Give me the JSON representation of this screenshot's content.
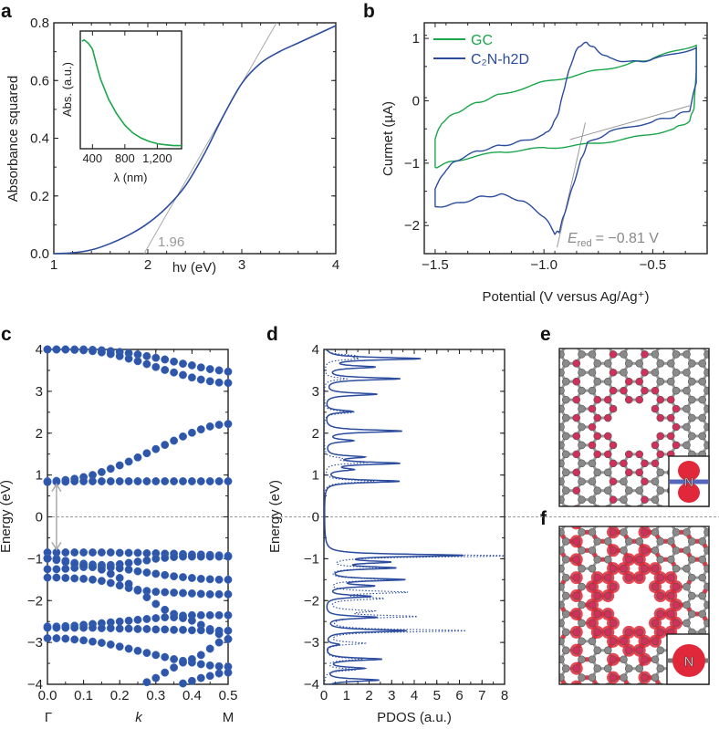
{
  "colors": {
    "blue": "#2b4c9e",
    "green": "#1aa64a",
    "gray": "#999999",
    "red": "#e0283a",
    "atom": "#8a8a8a",
    "nitrogen": "#d0305a"
  },
  "panels": {
    "a": "a",
    "b": "b",
    "c": "c",
    "d": "d",
    "e": "e",
    "f": "f"
  },
  "structure": {
    "atom_label": "N"
  },
  "chart_data": [
    {
      "id": "a",
      "type": "line",
      "xlabel": "hν (eV)",
      "ylabel": "Absorbance squared",
      "xlim": [
        1,
        4
      ],
      "ylim": [
        0,
        0.8
      ],
      "xticks": [
        "1",
        "2",
        "3",
        "4"
      ],
      "xtick_values": [
        1,
        2,
        3,
        4
      ],
      "yticks": [
        "0.0",
        "0.2",
        "0.4",
        "0.6",
        "0.8"
      ],
      "ytick_values": [
        0,
        0.2,
        0.4,
        0.6,
        0.8
      ],
      "series": [
        {
          "name": "absorbance squared",
          "x": [
            1,
            1.2,
            1.4,
            1.6,
            1.8,
            2.0,
            2.2,
            2.4,
            2.6,
            2.8,
            3.0,
            3.2,
            3.4,
            3.6,
            3.8,
            4.0
          ],
          "y": [
            0,
            0.003,
            0.013,
            0.035,
            0.065,
            0.105,
            0.16,
            0.235,
            0.345,
            0.475,
            0.59,
            0.66,
            0.7,
            0.73,
            0.76,
            0.79
          ]
        }
      ],
      "tangent": {
        "x": [
          1.96,
          3.37
        ],
        "y": [
          0,
          0.8
        ]
      },
      "annotation": "1.96",
      "inset": {
        "type": "line",
        "xlabel": "λ (nm)",
        "ylabel": "Abs. (a.u.)",
        "xlim": [
          250,
          1500
        ],
        "ylim": [
          0,
          1.05
        ],
        "xticks": [
          "400",
          "800",
          "1,200"
        ],
        "xtick_values": [
          400,
          800,
          1200
        ],
        "x": [
          270,
          300,
          350,
          400,
          450,
          500,
          600,
          700,
          800,
          900,
          1000,
          1100,
          1200,
          1300,
          1400,
          1500
        ],
        "y": [
          0.96,
          0.97,
          0.94,
          0.89,
          0.75,
          0.62,
          0.44,
          0.31,
          0.21,
          0.14,
          0.095,
          0.065,
          0.045,
          0.035,
          0.028,
          0.028
        ]
      }
    },
    {
      "id": "b",
      "type": "line",
      "xlabel": "Potential (V versus Ag/Ag⁺)",
      "ylabel": "Curmet (µA)",
      "xlim": [
        -1.55,
        -0.25
      ],
      "ylim": [
        -2.45,
        1.25
      ],
      "xticks": [
        "−1.5",
        "−1.0",
        "−0.5"
      ],
      "xtick_values": [
        -1.5,
        -1.0,
        -0.5
      ],
      "yticks": [
        "−2",
        "−1",
        "0",
        "1"
      ],
      "ytick_values": [
        -2,
        -1,
        0,
        1
      ],
      "legend_position": "top-left",
      "series": [
        {
          "name": "GC",
          "x": [
            -1.5,
            -1.5,
            -1.47,
            -1.4,
            -1.3,
            -1.2,
            -1.0,
            -0.8,
            -0.6,
            -0.5,
            -0.3,
            -0.3,
            -0.31,
            -0.33,
            -0.4,
            -0.6,
            -0.8,
            -1.0,
            -1.2,
            -1.4,
            -1.5
          ],
          "y": [
            -1.07,
            -0.6,
            -0.35,
            -0.18,
            -0.02,
            0.1,
            0.3,
            0.45,
            0.6,
            0.68,
            0.9,
            0.5,
            -0.1,
            -0.32,
            -0.45,
            -0.6,
            -0.7,
            -0.76,
            -0.82,
            -0.95,
            -1.07
          ]
        },
        {
          "name": "C₂N-h2D",
          "x": [
            -1.5,
            -1.5,
            -1.45,
            -1.4,
            -1.3,
            -1.2,
            -1.1,
            -1.0,
            -0.96,
            -0.93,
            -0.9,
            -0.87,
            -0.84,
            -0.8,
            -0.76,
            -0.7,
            -0.6,
            -0.5,
            -0.3,
            -0.3,
            -0.33,
            -0.4,
            -0.5,
            -0.7,
            -0.8,
            -0.83,
            -0.87,
            -0.91,
            -0.93,
            -0.95,
            -1.0,
            -1.1,
            -1.2,
            -1.3,
            -1.4,
            -1.5
          ],
          "y": [
            -1.7,
            -1.4,
            -1.1,
            -0.95,
            -0.8,
            -0.72,
            -0.65,
            -0.55,
            -0.4,
            -0.15,
            0.3,
            0.65,
            0.88,
            0.93,
            0.82,
            0.68,
            0.62,
            0.66,
            0.85,
            0.3,
            -0.15,
            -0.25,
            -0.33,
            -0.5,
            -0.68,
            -0.95,
            -1.4,
            -1.85,
            -2.1,
            -2.12,
            -1.85,
            -1.6,
            -1.5,
            -1.55,
            -1.65,
            -1.7
          ]
        }
      ],
      "tangents": [
        {
          "x": [
            -0.94,
            -0.81
          ],
          "y": [
            -2.35,
            -0.35
          ]
        },
        {
          "x": [
            -0.88,
            -0.33
          ],
          "y": [
            -0.62,
            -0.08
          ]
        }
      ],
      "annotation": {
        "symbol": "E",
        "subscript": "red",
        "value": "= −0.81 V"
      }
    },
    {
      "id": "c",
      "type": "scatter",
      "xlabel": "k",
      "ylabel": "Energy (eV)",
      "xlim": [
        0,
        0.5
      ],
      "ylim": [
        -4,
        4
      ],
      "xticks": [
        "0.0",
        "0.1",
        "0.2",
        "0.3",
        "0.4",
        "0.5"
      ],
      "xtick_values": [
        0,
        0.1,
        0.2,
        0.3,
        0.4,
        0.5
      ],
      "yticks": [
        "−4",
        "−3",
        "−2",
        "−1",
        "0",
        "1",
        "2",
        "3",
        "4"
      ],
      "ytick_values": [
        -4,
        -3,
        -2,
        -1,
        0,
        1,
        2,
        3,
        4
      ],
      "high_symmetry_points": [
        "Γ",
        "M"
      ],
      "band_gap_arrow": {
        "k": 0.025,
        "from": 0.78,
        "to": -0.78
      },
      "k": [
        0,
        0.025,
        0.05,
        0.075,
        0.1,
        0.125,
        0.15,
        0.175,
        0.2,
        0.225,
        0.25,
        0.275,
        0.3,
        0.325,
        0.35,
        0.375,
        0.4,
        0.425,
        0.45,
        0.475,
        0.5
      ],
      "bands": [
        [
          4.0,
          4.0,
          4.0,
          4.0,
          4.0,
          3.99,
          3.98,
          3.96,
          3.94,
          3.91,
          3.88,
          3.84,
          3.8,
          3.76,
          3.71,
          3.66,
          3.62,
          3.57,
          3.53,
          3.5,
          3.47
        ],
        [
          4.0,
          4.0,
          4.0,
          3.99,
          3.98,
          3.96,
          3.93,
          3.89,
          3.84,
          3.78,
          3.72,
          3.65,
          3.58,
          3.51,
          3.45,
          3.39,
          3.33,
          3.28,
          3.24,
          3.21,
          3.2
        ],
        [
          0.85,
          0.86,
          0.88,
          0.91,
          0.95,
          1.0,
          1.07,
          1.15,
          1.23,
          1.32,
          1.42,
          1.52,
          1.62,
          1.72,
          1.82,
          1.92,
          2.01,
          2.09,
          2.16,
          2.2,
          2.22
        ],
        [
          0.83,
          0.84,
          0.84,
          0.85,
          0.85,
          0.85,
          0.85,
          0.85,
          0.85,
          0.85,
          0.85,
          0.85,
          0.85,
          0.85,
          0.85,
          0.85,
          0.85,
          0.85,
          0.85,
          0.85,
          0.85
        ],
        [
          -0.85,
          -0.85,
          -0.85,
          -0.85,
          -0.85,
          -0.85,
          -0.85,
          -0.85,
          -0.86,
          -0.86,
          -0.86,
          -0.87,
          -0.87,
          -0.88,
          -0.88,
          -0.89,
          -0.9,
          -0.9,
          -0.91,
          -0.92,
          -0.93
        ],
        [
          -0.98,
          -1.0,
          -1.05,
          -1.1,
          -1.12,
          -1.14,
          -1.15,
          -1.15,
          -1.13,
          -1.1,
          -1.07,
          -1.04,
          -1.0,
          -0.98,
          -0.96,
          -0.95,
          -0.95,
          -0.95,
          -0.95,
          -0.95,
          -0.95
        ],
        [
          -1.25,
          -1.25,
          -1.24,
          -1.22,
          -1.2,
          -1.2,
          -1.2,
          -1.21,
          -1.23,
          -1.26,
          -1.3,
          -1.33,
          -1.36,
          -1.39,
          -1.42,
          -1.44,
          -1.46,
          -1.48,
          -1.49,
          -1.5,
          -1.5
        ],
        [
          -1.45,
          -1.45,
          -1.46,
          -1.47,
          -1.48,
          -1.5,
          -1.53,
          -1.58,
          -1.64,
          -1.7,
          -1.74,
          -1.77,
          -1.79,
          -1.8,
          -1.81,
          -1.82,
          -1.83,
          -1.84,
          -1.85,
          -1.85,
          -1.85
        ],
        [
          -1.0,
          -1.03,
          -1.08,
          -1.12,
          -1.16,
          -1.2,
          -1.26,
          -1.36,
          -1.46,
          -1.6,
          -1.76,
          -1.92,
          -2.08,
          -2.22,
          -2.32,
          -2.36,
          -2.35,
          -2.35,
          -2.35,
          -2.35,
          -2.35
        ],
        [
          -2.62,
          -2.62,
          -2.61,
          -2.6,
          -2.58,
          -2.56,
          -2.54,
          -2.52,
          -2.5,
          -2.48,
          -2.46,
          -2.44,
          -2.42,
          -2.4,
          -2.4,
          -2.42,
          -2.48,
          -2.58,
          -2.68,
          -2.72,
          -2.72
        ],
        [
          -2.65,
          -2.65,
          -2.65,
          -2.65,
          -2.65,
          -2.65,
          -2.66,
          -2.66,
          -2.67,
          -2.67,
          -2.68,
          -2.68,
          -2.69,
          -2.69,
          -2.7,
          -2.7,
          -2.71,
          -2.71,
          -2.72,
          -2.8,
          -2.92
        ],
        [
          -2.9,
          -2.9,
          -2.91,
          -2.93,
          -2.95,
          -2.98,
          -3.01,
          -3.05,
          -3.1,
          -3.15,
          -3.2,
          -3.25,
          -3.3,
          -3.35,
          -3.4,
          -3.44,
          -3.48,
          -3.52,
          -3.55,
          -3.57,
          -3.58
        ],
        [
          null,
          null,
          null,
          null,
          null,
          null,
          null,
          null,
          null,
          null,
          null,
          -3.95,
          -3.85,
          -3.72,
          -3.6,
          -3.48,
          -3.4,
          -3.3,
          -3.15,
          -3.0,
          -2.92
        ],
        [
          null,
          null,
          null,
          null,
          null,
          null,
          null,
          null,
          null,
          null,
          null,
          null,
          null,
          null,
          null,
          -3.98,
          -3.92,
          -3.85,
          -3.8,
          -3.74,
          -3.72
        ]
      ]
    },
    {
      "id": "d",
      "type": "line",
      "xlabel": "PDOS (a.u.)",
      "ylabel": "Energy (eV)",
      "xlim": [
        0,
        8
      ],
      "ylim": [
        -4,
        4
      ],
      "xticks": [
        "0",
        "1",
        "2",
        "3",
        "4",
        "5",
        "6",
        "7",
        "8"
      ],
      "xtick_values": [
        0,
        1,
        2,
        3,
        4,
        5,
        6,
        7,
        8
      ],
      "yticks": [
        "−4",
        "−3",
        "−2",
        "−1",
        "0",
        "1",
        "2",
        "3",
        "4"
      ],
      "ytick_values": [
        -4,
        -3,
        -2,
        -1,
        0,
        1,
        2,
        3,
        4
      ],
      "series": [
        {
          "name": "solid",
          "style": "solid",
          "peaks_energy": [
            3.78,
            3.58,
            3.3,
            2.93,
            2.52,
            2.05,
            1.82,
            1.43,
            1.28,
            1.13,
            0.85,
            -0.92,
            -1.08,
            -1.22,
            -1.5,
            -1.65,
            -1.9,
            -2.4,
            -2.72,
            -3.05,
            -3.4,
            -3.62,
            -3.9
          ],
          "peaks_pdos": [
            4.2,
            2.1,
            3.3,
            2.3,
            1.2,
            3.4,
            1.2,
            1.6,
            3.2,
            1.1,
            3.3,
            6.0,
            2.5,
            2.9,
            3.4,
            2.0,
            2.0,
            2.3,
            3.6,
            0.6,
            2.5,
            1.7,
            2.4
          ]
        },
        {
          "name": "dotted",
          "style": "dotted",
          "peaks_energy": [
            3.85,
            3.78,
            3.3,
            2.5,
            1.4,
            1.3,
            0.85,
            -0.93,
            -1.22,
            -1.5,
            -1.8,
            -1.95,
            -2.25,
            -2.38,
            -2.72,
            -3.02,
            -3.4,
            -3.65
          ],
          "peaks_pdos": [
            1.2,
            1.3,
            1.0,
            1.3,
            0.6,
            1.8,
            2.2,
            8.0,
            2.4,
            2.8,
            3.5,
            2.4,
            1.9,
            3.9,
            6.2,
            1.7,
            1.6,
            1.4
          ]
        }
      ]
    }
  ]
}
